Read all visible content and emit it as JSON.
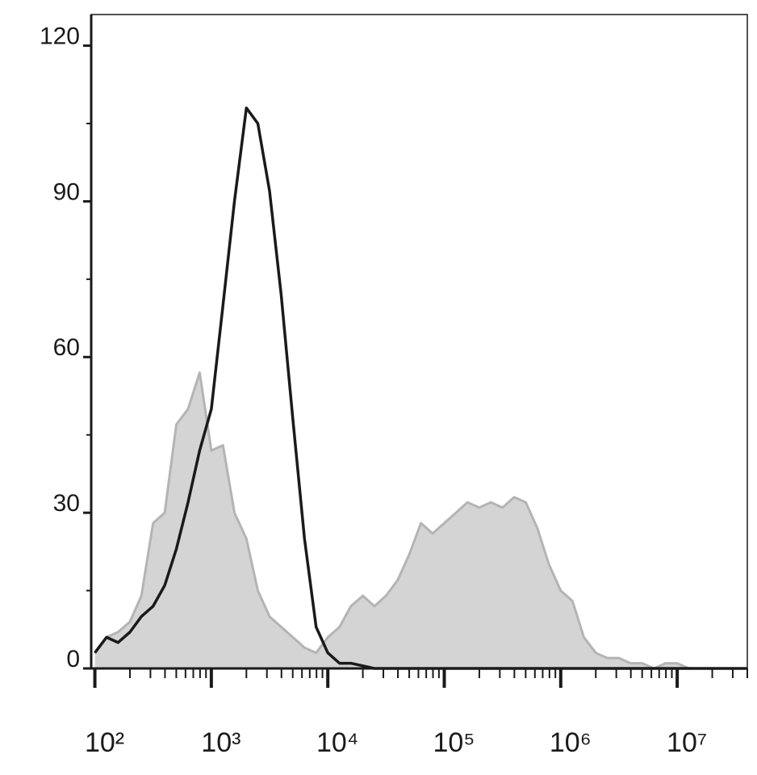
{
  "chart_data": {
    "type": "line",
    "x": [
      100,
      126,
      158,
      200,
      251,
      316,
      398,
      501,
      631,
      794,
      1000,
      1260,
      1580,
      2000,
      2510,
      3160,
      3980,
      5010,
      6310,
      7940,
      10000,
      12600,
      15800,
      20000,
      25100,
      31600,
      39800,
      50100,
      63100,
      79400,
      100000,
      126000,
      158000,
      200000,
      251000,
      316000,
      398000,
      501000,
      631000,
      794000,
      1000000,
      1260000,
      1580000,
      2000000,
      2510000,
      3160000,
      3980000,
      5010000,
      6310000,
      7940000,
      10000000,
      12600000,
      15800000,
      20000000,
      25100000,
      31600000,
      39800000
    ],
    "series": [
      {
        "color": "#b4b4b6",
        "fill": "#d4d4d5",
        "values": [
          3,
          6,
          7,
          9,
          14,
          28,
          30,
          47,
          50,
          57,
          42,
          43,
          30,
          25,
          15,
          10,
          8,
          6,
          4,
          3,
          6,
          8,
          12,
          14,
          12,
          14,
          17,
          22,
          28,
          26,
          28,
          30,
          32,
          31,
          32,
          31,
          33,
          32,
          27,
          20,
          15,
          13,
          6,
          3,
          2,
          2,
          1,
          1,
          0,
          1,
          1,
          0,
          0,
          0,
          0,
          0,
          0
        ]
      },
      {
        "color": "#1a1a1a",
        "values": [
          3,
          6,
          5,
          7,
          10,
          12,
          16,
          23,
          32,
          42,
          50,
          70,
          90,
          108,
          105,
          92,
          72,
          48,
          25,
          8,
          3,
          1,
          1,
          0.5,
          0,
          0,
          0,
          0,
          0,
          0,
          0,
          0,
          0,
          0,
          0,
          0,
          0,
          0,
          0,
          0,
          0,
          0,
          0,
          0,
          0,
          0,
          0,
          0,
          0,
          0,
          0,
          0,
          0,
          0,
          0,
          0,
          0
        ]
      }
    ],
    "xlog": true,
    "xlim": [
      93,
      40000000
    ],
    "xticks": [
      {
        "value": 100,
        "label": "10²"
      },
      {
        "value": 1000,
        "label": "10³"
      },
      {
        "value": 10000,
        "label": "10⁴"
      },
      {
        "value": 100000,
        "label": "10⁵"
      },
      {
        "value": 1000000,
        "label": "10⁶"
      },
      {
        "value": 10000000,
        "label": "10⁷"
      }
    ],
    "ylim": [
      0,
      126
    ],
    "yticks": [
      0,
      30,
      60,
      90,
      120
    ]
  }
}
